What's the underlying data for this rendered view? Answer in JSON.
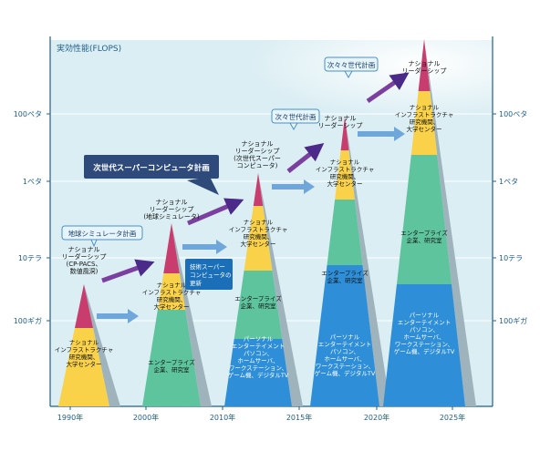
{
  "y_axis": {
    "title": "実効性能(FLOPS)",
    "ticks": [
      "100ペタ",
      "1ペタ",
      "10テラ",
      "100ギガ"
    ]
  },
  "x_axis": {
    "ticks": [
      "1990年",
      "2000年",
      "2010年",
      "2015年",
      "2020年",
      "2025年"
    ]
  },
  "pyramids": [
    {
      "top_label": [
        "ナショナル",
        "リーダーシップ",
        "(CP-PACS、",
        "数値風洞)"
      ],
      "tiers": [
        {
          "name": "ナショナル\nインフラストラクチャ\n研究機関、\n大学センター",
          "color": "#f9d24a"
        }
      ]
    },
    {
      "top_label": [
        "ナショナル",
        "リーダーシップ",
        "(地球シミュレータ)"
      ],
      "tiers": [
        {
          "name": "ナショナル\nインフラストラクチャ\n研究機関、\n大学センター",
          "color": "#f9d24a"
        },
        {
          "name": "エンタープライズ\n企業、研究室",
          "color": "#5ec49e"
        }
      ]
    },
    {
      "top_label": [],
      "tiers": [
        {
          "name": "ナショナル\nインフラストラクチャ\n研究機関、\n大学センター",
          "color": "#f9d24a"
        },
        {
          "name": "エンタープライズ\n企業、研究室",
          "color": "#5ec49e"
        },
        {
          "name": "パーソナル\nエンターテイメント\nパソコン、\nホームサーバ、\nワークステーション、\nゲーム機、デジタルTV",
          "color": "#2e8fd8"
        }
      ]
    },
    {
      "top_label": [],
      "tiers": [
        {
          "name": "ナショナル\nインフラストラクチャ\n研究機関、\n大学センター",
          "color": "#f9d24a"
        },
        {
          "name": "エンタープライズ\n企業、研究室",
          "color": "#5ec49e"
        },
        {
          "name": "パーソナル\nエンターテイメント\nパソコン、\nホームサーバ、\nワークステーション、\nゲーム機、デジタルTV",
          "color": "#2e8fd8"
        }
      ]
    },
    {
      "top_label": [
        "ナショナル",
        "リーダーシップ"
      ],
      "tiers": [
        {
          "name": "ナショナル\nインフラストラクチャ\n研究機関、\n大学センター",
          "color": "#f9d24a"
        },
        {
          "name": "エンタープライズ\n企業、研究室",
          "color": "#5ec49e"
        },
        {
          "name": "パーソナル\nエンターテイメント\nパソコン、\nホームサーバ、\nワークステーション、\nゲーム機、デジタルTV",
          "color": "#2e8fd8"
        }
      ]
    }
  ],
  "callouts": {
    "earth_simulator": "地球シミュレータ計画",
    "next_gen": "次世代スーパーコンピュータ計画",
    "next_next": "次々世代計画",
    "next_next_next": "次々々世代計画",
    "spillover": [
      "技術スーパー",
      "コンピュータの",
      "更新"
    ]
  },
  "peak_labels": {
    "p3": [
      "ナショナル",
      "リーダーシップ",
      "(次世代スーパー",
      "コンピュータ)"
    ],
    "p4": [
      "ナショナル",
      "リーダーシップ"
    ]
  },
  "colors": {
    "background": "#ffffff",
    "panel": "#dbeef3",
    "top": "#c83c6e",
    "leader_arrow": "#7b3fa0",
    "flow_arrow": "#6fa7db",
    "axis": "#1f5f8b"
  }
}
